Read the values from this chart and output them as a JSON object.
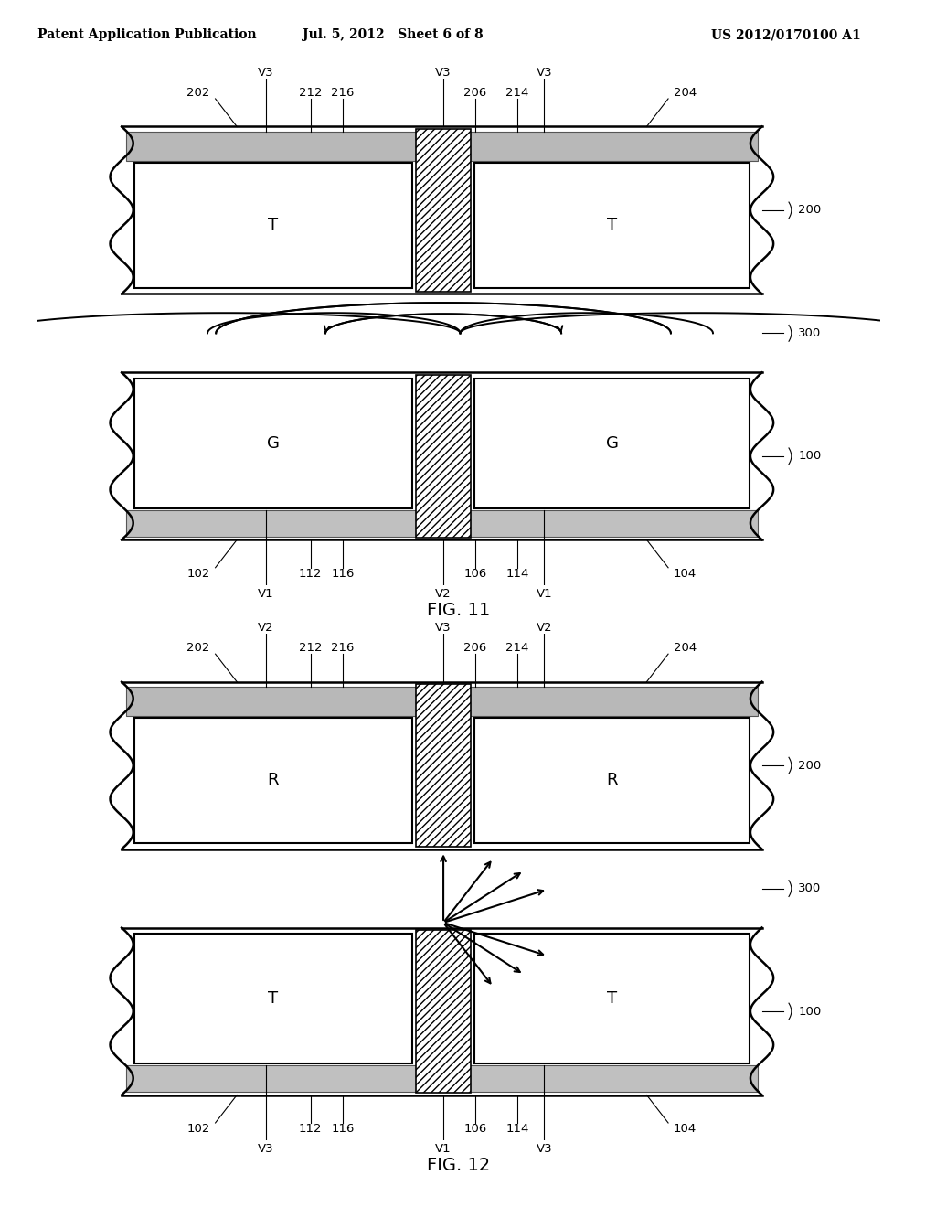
{
  "header_left": "Patent Application Publication",
  "header_mid": "Jul. 5, 2012   Sheet 6 of 8",
  "header_right": "US 2012/0170100 A1",
  "fig11_title": "FIG. 11",
  "fig12_title": "FIG. 12",
  "bg_color": "#ffffff"
}
